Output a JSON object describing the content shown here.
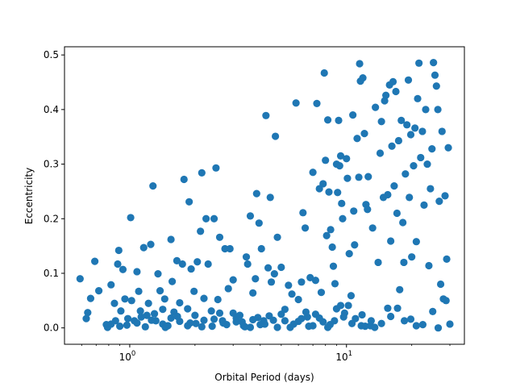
{
  "chart_data": {
    "type": "scatter",
    "title": "",
    "xlabel": "Orbital Period (days)",
    "ylabel": "Eccentricity",
    "xscale": "log",
    "xlim": [
      0.5,
      35
    ],
    "ylim": [
      -0.03,
      0.515
    ],
    "grid": false,
    "marker_color": "#1f77b4",
    "x_ticks": [
      {
        "value": 1,
        "label": "10",
        "exp": "0"
      },
      {
        "value": 10,
        "label": "10",
        "exp": "1"
      }
    ],
    "y_ticks": [
      {
        "value": 0.0,
        "label": "0.0"
      },
      {
        "value": 0.1,
        "label": "0.1"
      },
      {
        "value": 0.2,
        "label": "0.2"
      },
      {
        "value": 0.3,
        "label": "0.3"
      },
      {
        "value": 0.4,
        "label": "0.4"
      },
      {
        "value": 0.5,
        "label": "0.5"
      }
    ],
    "series": [
      {
        "points": [
          [
            0.59,
            0.09
          ],
          [
            0.63,
            0.017
          ],
          [
            0.64,
            0.028
          ],
          [
            0.66,
            0.054
          ],
          [
            0.69,
            0.122
          ],
          [
            0.72,
            0.068
          ],
          [
            0.78,
            0.006
          ],
          [
            0.79,
            0.001
          ],
          [
            0.82,
            0.079
          ],
          [
            0.85,
            0.045
          ],
          [
            0.86,
            0.013
          ],
          [
            0.88,
            0.117
          ],
          [
            0.89,
            0.142
          ],
          [
            0.91,
            0.031
          ],
          [
            0.93,
            0.107
          ],
          [
            0.95,
            0.053
          ],
          [
            0.97,
            0.005
          ],
          [
            1.01,
            0.202
          ],
          [
            1.02,
            0.05
          ],
          [
            1.05,
            0.013
          ],
          [
            1.08,
            0.103
          ],
          [
            1.1,
            0.067
          ],
          [
            1.13,
            0.02
          ],
          [
            1.16,
            0.147
          ],
          [
            1.2,
            0.023
          ],
          [
            1.22,
            0.045
          ],
          [
            1.25,
            0.153
          ],
          [
            1.28,
            0.26
          ],
          [
            1.32,
            0.013
          ],
          [
            1.35,
            0.099
          ],
          [
            1.38,
            0.068
          ],
          [
            1.42,
            0.034
          ],
          [
            1.45,
            0.053
          ],
          [
            1.5,
            0.004
          ],
          [
            1.55,
            0.162
          ],
          [
            1.57,
            0.085
          ],
          [
            1.6,
            0.029
          ],
          [
            1.65,
            0.123
          ],
          [
            1.7,
            0.046
          ],
          [
            1.75,
            0.117
          ],
          [
            1.78,
            0.272
          ],
          [
            1.85,
            0.035
          ],
          [
            1.88,
            0.231
          ],
          [
            1.92,
            0.108
          ],
          [
            1.98,
            0.067
          ],
          [
            2.02,
            0.008
          ],
          [
            2.05,
            0.121
          ],
          [
            2.12,
            0.177
          ],
          [
            2.15,
            0.284
          ],
          [
            2.2,
            0.054
          ],
          [
            2.25,
            0.2
          ],
          [
            2.3,
            0.117
          ],
          [
            2.38,
            0.031
          ],
          [
            2.45,
            0.2
          ],
          [
            2.5,
            0.293
          ],
          [
            2.55,
            0.052
          ],
          [
            2.6,
            0.166
          ],
          [
            2.68,
            0.013
          ],
          [
            2.75,
            0.145
          ],
          [
            2.85,
            0.072
          ],
          [
            2.9,
            0.145
          ],
          [
            3.0,
            0.088
          ],
          [
            3.1,
            0.011
          ],
          [
            3.22,
            0.023
          ],
          [
            3.35,
            0.004
          ],
          [
            3.45,
            0.13
          ],
          [
            3.5,
            0.117
          ],
          [
            3.6,
            0.205
          ],
          [
            3.7,
            0.064
          ],
          [
            3.8,
            0.09
          ],
          [
            3.85,
            0.246
          ],
          [
            3.95,
            0.192
          ],
          [
            4.05,
            0.145
          ],
          [
            4.15,
            0.013
          ],
          [
            4.25,
            0.389
          ],
          [
            4.35,
            0.11
          ],
          [
            4.45,
            0.239
          ],
          [
            4.5,
            0.084
          ],
          [
            4.65,
            0.099
          ],
          [
            4.7,
            0.351
          ],
          [
            4.8,
            0.166
          ],
          [
            5.0,
            0.111
          ],
          [
            5.2,
            0.034
          ],
          [
            5.4,
            0.078
          ],
          [
            5.6,
            0.062
          ],
          [
            5.85,
            0.412
          ],
          [
            6.0,
            0.052
          ],
          [
            6.2,
            0.084
          ],
          [
            6.3,
            0.211
          ],
          [
            6.45,
            0.183
          ],
          [
            6.6,
            0.02
          ],
          [
            6.8,
            0.092
          ],
          [
            7.0,
            0.285
          ],
          [
            7.2,
            0.087
          ],
          [
            7.3,
            0.411
          ],
          [
            7.5,
            0.255
          ],
          [
            7.65,
            0.065
          ],
          [
            7.8,
            0.264
          ],
          [
            7.9,
            0.467
          ],
          [
            8.0,
            0.307
          ],
          [
            8.1,
            0.169
          ],
          [
            8.2,
            0.381
          ],
          [
            8.3,
            0.249
          ],
          [
            8.45,
            0.18
          ],
          [
            8.6,
            0.148
          ],
          [
            8.7,
            0.113
          ],
          [
            8.85,
            0.081
          ],
          [
            9.0,
            0.3
          ],
          [
            9.1,
            0.248
          ],
          [
            9.2,
            0.38
          ],
          [
            9.3,
            0.297
          ],
          [
            9.4,
            0.315
          ],
          [
            9.5,
            0.228
          ],
          [
            9.6,
            0.2
          ],
          [
            9.8,
            0.027
          ],
          [
            10.0,
            0.31
          ],
          [
            10.1,
            0.274
          ],
          [
            10.3,
            0.136
          ],
          [
            10.5,
            0.059
          ],
          [
            10.7,
            0.39
          ],
          [
            10.8,
            0.214
          ],
          [
            10.9,
            0.152
          ],
          [
            11.2,
            0.347
          ],
          [
            11.4,
            0.276
          ],
          [
            11.5,
            0.484
          ],
          [
            11.6,
            0.452
          ],
          [
            11.7,
            0.004
          ],
          [
            11.9,
            0.458
          ],
          [
            12.1,
            0.356
          ],
          [
            12.3,
            0.226
          ],
          [
            12.5,
            0.217
          ],
          [
            12.6,
            0.277
          ],
          [
            12.9,
            0.004
          ],
          [
            13.2,
            0.183
          ],
          [
            13.6,
            0.404
          ],
          [
            14.0,
            0.12
          ],
          [
            14.3,
            0.32
          ],
          [
            14.5,
            0.378
          ],
          [
            14.8,
            0.239
          ],
          [
            15.0,
            0.416
          ],
          [
            15.2,
            0.426
          ],
          [
            15.5,
            0.244
          ],
          [
            15.8,
            0.445
          ],
          [
            16.0,
            0.159
          ],
          [
            16.2,
            0.333
          ],
          [
            16.4,
            0.451
          ],
          [
            16.6,
            0.26
          ],
          [
            16.9,
            0.433
          ],
          [
            17.1,
            0.21
          ],
          [
            17.4,
            0.343
          ],
          [
            17.6,
            0.07
          ],
          [
            17.9,
            0.38
          ],
          [
            18.2,
            0.193
          ],
          [
            18.4,
            0.12
          ],
          [
            18.7,
            0.282
          ],
          [
            19.0,
            0.372
          ],
          [
            19.3,
            0.454
          ],
          [
            19.5,
            0.239
          ],
          [
            19.8,
            0.354
          ],
          [
            20.0,
            0.13
          ],
          [
            20.4,
            0.297
          ],
          [
            20.7,
            0.366
          ],
          [
            21.0,
            0.158
          ],
          [
            21.3,
            0.42
          ],
          [
            21.6,
            0.485
          ],
          [
            22.0,
            0.312
          ],
          [
            22.4,
            0.36
          ],
          [
            22.8,
            0.225
          ],
          [
            23.2,
            0.4
          ],
          [
            23.6,
            0.3
          ],
          [
            24.0,
            0.114
          ],
          [
            24.4,
            0.255
          ],
          [
            24.8,
            0.328
          ],
          [
            25.2,
            0.486
          ],
          [
            25.6,
            0.463
          ],
          [
            26.0,
            0.443
          ],
          [
            26.4,
            0.4
          ],
          [
            26.8,
            0.232
          ],
          [
            27.2,
            0.08
          ],
          [
            27.6,
            0.36
          ],
          [
            28.0,
            0.053
          ],
          [
            28.5,
            0.242
          ],
          [
            29.0,
            0.126
          ],
          [
            29.5,
            0.33
          ],
          [
            30.0,
            0.007
          ],
          [
            26.5,
            0.0
          ],
          [
            21.0,
            0.004
          ],
          [
            18.5,
            0.013
          ],
          [
            16.0,
            0.021
          ],
          [
            14.5,
            0.008
          ],
          [
            13.5,
            0.001
          ],
          [
            12.2,
            0.003
          ],
          [
            11.0,
            0.017
          ],
          [
            10.2,
            0.041
          ],
          [
            9.7,
            0.02
          ],
          [
            9.0,
            0.035
          ],
          [
            8.4,
            0.006
          ],
          [
            7.8,
            0.011
          ],
          [
            7.2,
            0.025
          ],
          [
            6.7,
            0.003
          ],
          [
            6.2,
            0.017
          ],
          [
            5.7,
            0.007
          ],
          [
            5.2,
            0.013
          ],
          [
            4.8,
            0.001
          ],
          [
            4.4,
            0.022
          ],
          [
            4.0,
            0.006
          ],
          [
            3.7,
            0.015
          ],
          [
            3.4,
            0.002
          ],
          [
            3.1,
            0.018
          ],
          [
            2.8,
            0.006
          ],
          [
            2.6,
            0.027
          ],
          [
            2.4,
            0.003
          ],
          [
            2.2,
            0.014
          ],
          [
            2.0,
            0.023
          ],
          [
            1.85,
            0.004
          ],
          [
            1.7,
            0.012
          ],
          [
            1.55,
            0.018
          ],
          [
            1.42,
            0.007
          ],
          [
            1.3,
            0.026
          ],
          [
            1.18,
            0.002
          ],
          [
            1.08,
            0.009
          ],
          [
            0.98,
            0.017
          ],
          [
            0.9,
            0.003
          ],
          [
            0.82,
            0.007
          ],
          [
            1.12,
            0.031
          ],
          [
            1.26,
            0.014
          ],
          [
            1.46,
            0.001
          ],
          [
            1.66,
            0.021
          ],
          [
            1.9,
            0.009
          ],
          [
            2.15,
            0.002
          ],
          [
            2.45,
            0.016
          ],
          [
            2.7,
            0.009
          ],
          [
            3.0,
            0.027
          ],
          [
            3.3,
            0.011
          ],
          [
            3.6,
            0.001
          ],
          [
            3.9,
            0.019
          ],
          [
            4.2,
            0.007
          ],
          [
            4.6,
            0.014
          ],
          [
            5.0,
            0.025
          ],
          [
            5.5,
            0.001
          ],
          [
            6.0,
            0.012
          ],
          [
            6.5,
            0.029
          ],
          [
            7.0,
            0.004
          ],
          [
            7.5,
            0.018
          ],
          [
            8.2,
            0.001
          ],
          [
            8.8,
            0.013
          ],
          [
            9.4,
            0.041
          ],
          [
            10.6,
            0.008
          ],
          [
            11.8,
            0.024
          ],
          [
            13.0,
            0.013
          ],
          [
            15.5,
            0.036
          ],
          [
            17.2,
            0.036
          ],
          [
            19.8,
            0.016
          ],
          [
            22.5,
            0.006
          ],
          [
            25.0,
            0.03
          ],
          [
            28.8,
            0.05
          ]
        ]
      }
    ]
  }
}
